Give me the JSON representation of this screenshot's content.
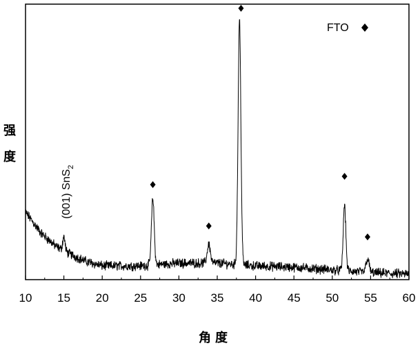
{
  "chart_data": {
    "type": "line",
    "xlabel": "角度",
    "ylabel": "强度",
    "xlim": [
      10,
      60
    ],
    "x_ticks": [
      10,
      15,
      20,
      25,
      30,
      35,
      40,
      45,
      50,
      55,
      60
    ],
    "y_ticks_shown": false,
    "grid": false,
    "legend": {
      "label": "FTO",
      "marker": "diamond",
      "placement": "top-right"
    },
    "annotation": {
      "text_prefix": "(001) SnS",
      "text_subscript": "2",
      "x": 15
    },
    "series": [
      {
        "baseline": [
          [
            10,
            0.245
          ],
          [
            12,
            0.17
          ],
          [
            14,
            0.12
          ],
          [
            16,
            0.09
          ],
          [
            18,
            0.065
          ],
          [
            20,
            0.05
          ],
          [
            25,
            0.05
          ],
          [
            30,
            0.06
          ],
          [
            35,
            0.06
          ],
          [
            40,
            0.05
          ],
          [
            45,
            0.045
          ],
          [
            50,
            0.035
          ],
          [
            55,
            0.025
          ],
          [
            60,
            0.02
          ]
        ],
        "peaks": [
          {
            "x": 15.0,
            "height": 0.05,
            "width": 0.15
          },
          {
            "x": 26.6,
            "height": 0.24,
            "width": 0.18
          },
          {
            "x": 33.9,
            "height": 0.07,
            "width": 0.2
          },
          {
            "x": 37.9,
            "height": 0.89,
            "width": 0.18
          },
          {
            "x": 51.6,
            "height": 0.24,
            "width": 0.17
          },
          {
            "x": 54.6,
            "height": 0.05,
            "width": 0.2
          }
        ],
        "noise_amplitude": 0.028,
        "points": 1400
      }
    ],
    "fto_marker_positions": [
      {
        "x": 26.6,
        "y": 0.345
      },
      {
        "x": 33.9,
        "y": 0.195
      },
      {
        "x": 38.1,
        "y": 0.985
      },
      {
        "x": 51.6,
        "y": 0.375
      },
      {
        "x": 54.6,
        "y": 0.155
      }
    ]
  }
}
